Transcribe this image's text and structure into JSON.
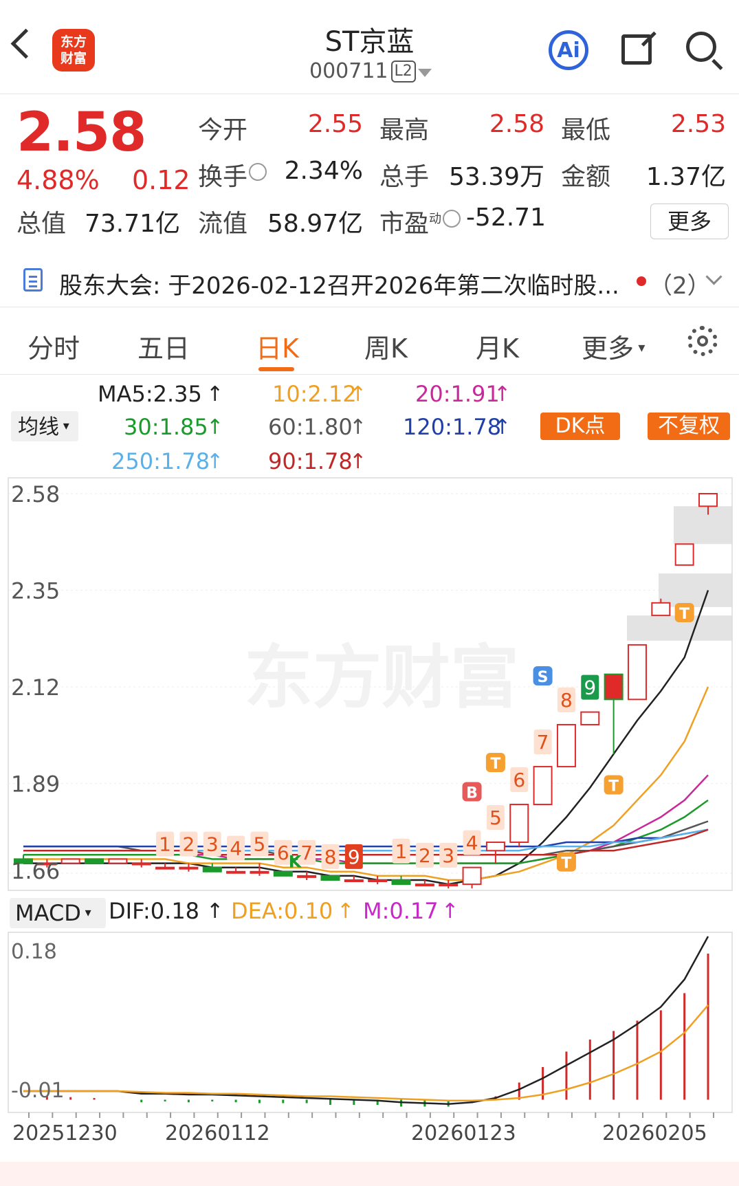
{
  "header": {
    "logo_text_line1": "东方",
    "logo_text_line2": "财富",
    "title": "ST京蓝",
    "code": "000711",
    "level": "L2",
    "ai_label": "Ai"
  },
  "quote": {
    "price": "2.58",
    "change_pct": "4.88%",
    "change": "0.12",
    "fields": [
      {
        "label": "今开",
        "value": "2.55",
        "color": "#e02a2a"
      },
      {
        "label": "最高",
        "value": "2.58",
        "color": "#e02a2a"
      },
      {
        "label": "最低",
        "value": "2.53",
        "color": "#e02a2a"
      },
      {
        "label": "换手",
        "value": "2.34%",
        "color": "#222222"
      },
      {
        "label": "总手",
        "value": "53.39万",
        "color": "#222222"
      },
      {
        "label": "金额",
        "value": "1.37亿",
        "color": "#222222"
      },
      {
        "label": "总值",
        "value": "73.71亿",
        "color": "#222222"
      },
      {
        "label": "流值",
        "value": "58.97亿",
        "color": "#222222"
      },
      {
        "label": "市盈",
        "value": "-52.71",
        "color": "#222222"
      }
    ],
    "pe_sup": "动",
    "more_label": "更多"
  },
  "notice": {
    "text": "股东大会: 于2026-02-12召开2026年第二次临时股...",
    "count": "（2）"
  },
  "tabs": [
    "分时",
    "五日",
    "日K",
    "周K",
    "月K",
    "更多"
  ],
  "active_tab": "日K",
  "indicators": {
    "junxian_label": "均线",
    "ma": [
      {
        "text": "MA5:2.35",
        "color": "#222222"
      },
      {
        "text": "10:2.12",
        "color": "#f0a020"
      },
      {
        "text": "20:1.91",
        "color": "#c8289a"
      },
      {
        "text": "30:1.85",
        "color": "#1a9a2a"
      },
      {
        "text": "60:1.80",
        "color": "#555555"
      },
      {
        "text": "120:1.78",
        "color": "#2040a8"
      },
      {
        "text": "250:1.78",
        "color": "#5ab0e8"
      },
      {
        "text": "90:1.78",
        "color": "#c02828"
      }
    ],
    "dk_label": "DK点",
    "fq_label": "不复权",
    "macd_label": "MACD",
    "macd": [
      {
        "text": "DIF:0.18",
        "color": "#222222"
      },
      {
        "text": "DEA:0.10",
        "color": "#f0a020"
      },
      {
        "text": "M:0.17",
        "color": "#c828c8"
      }
    ]
  },
  "watermark": "东方财富",
  "chart_data": [
    {
      "type": "candlestick",
      "y_ticks": [
        "2.58",
        "2.35",
        "2.12",
        "1.89",
        "1.66"
      ],
      "ylim": [
        1.66,
        2.58
      ],
      "candles": [
        {
          "o": 1.71,
          "h": 1.72,
          "l": 1.7,
          "c": 1.7
        },
        {
          "o": 1.7,
          "h": 1.71,
          "l": 1.69,
          "c": 1.7
        },
        {
          "o": 1.7,
          "h": 1.71,
          "l": 1.7,
          "c": 1.71
        },
        {
          "o": 1.71,
          "h": 1.71,
          "l": 1.7,
          "c": 1.7
        },
        {
          "o": 1.7,
          "h": 1.71,
          "l": 1.7,
          "c": 1.71
        },
        {
          "o": 1.7,
          "h": 1.71,
          "l": 1.69,
          "c": 1.7
        },
        {
          "o": 1.69,
          "h": 1.7,
          "l": 1.69,
          "c": 1.69
        },
        {
          "o": 1.69,
          "h": 1.7,
          "l": 1.68,
          "c": 1.69
        },
        {
          "o": 1.69,
          "h": 1.7,
          "l": 1.68,
          "c": 1.68
        },
        {
          "o": 1.68,
          "h": 1.69,
          "l": 1.68,
          "c": 1.68
        },
        {
          "o": 1.68,
          "h": 1.7,
          "l": 1.67,
          "c": 1.68
        },
        {
          "o": 1.68,
          "h": 1.68,
          "l": 1.67,
          "c": 1.67
        },
        {
          "o": 1.67,
          "h": 1.68,
          "l": 1.66,
          "c": 1.67
        },
        {
          "o": 1.67,
          "h": 1.67,
          "l": 1.66,
          "c": 1.66
        },
        {
          "o": 1.66,
          "h": 1.67,
          "l": 1.66,
          "c": 1.66
        },
        {
          "o": 1.66,
          "h": 1.67,
          "l": 1.65,
          "c": 1.66
        },
        {
          "o": 1.66,
          "h": 1.67,
          "l": 1.65,
          "c": 1.65
        },
        {
          "o": 1.65,
          "h": 1.66,
          "l": 1.65,
          "c": 1.65
        },
        {
          "o": 1.65,
          "h": 1.66,
          "l": 1.64,
          "c": 1.65
        },
        {
          "o": 1.65,
          "h": 1.69,
          "l": 1.64,
          "c": 1.69
        },
        {
          "o": 1.73,
          "h": 1.75,
          "l": 1.7,
          "c": 1.75
        },
        {
          "o": 1.75,
          "h": 1.84,
          "l": 1.74,
          "c": 1.84
        },
        {
          "o": 1.84,
          "h": 1.93,
          "l": 1.84,
          "c": 1.93
        },
        {
          "o": 1.93,
          "h": 2.03,
          "l": 1.93,
          "c": 2.03
        },
        {
          "o": 2.03,
          "h": 2.06,
          "l": 2.03,
          "c": 2.06
        },
        {
          "o": 2.15,
          "h": 2.15,
          "l": 1.96,
          "c": 2.09
        },
        {
          "o": 2.09,
          "h": 2.22,
          "l": 2.09,
          "c": 2.22
        },
        {
          "o": 2.29,
          "h": 2.33,
          "l": 2.29,
          "c": 2.32
        },
        {
          "o": 2.41,
          "h": 2.46,
          "l": 2.41,
          "c": 2.46
        },
        {
          "o": 2.55,
          "h": 2.58,
          "l": 2.53,
          "c": 2.58
        }
      ],
      "ma_lines": [
        {
          "name": "MA5",
          "color": "#222222",
          "values": [
            1.7,
            1.7,
            1.7,
            1.7,
            1.7,
            1.7,
            1.7,
            1.7,
            1.69,
            1.69,
            1.69,
            1.68,
            1.68,
            1.67,
            1.67,
            1.66,
            1.66,
            1.66,
            1.65,
            1.66,
            1.67,
            1.7,
            1.75,
            1.81,
            1.88,
            1.96,
            2.04,
            2.11,
            2.19,
            2.35
          ]
        },
        {
          "name": "10",
          "color": "#f0a020",
          "values": [
            1.71,
            1.71,
            1.71,
            1.71,
            1.71,
            1.71,
            1.71,
            1.7,
            1.7,
            1.7,
            1.7,
            1.69,
            1.69,
            1.68,
            1.68,
            1.67,
            1.67,
            1.67,
            1.66,
            1.66,
            1.67,
            1.68,
            1.7,
            1.72,
            1.75,
            1.79,
            1.85,
            1.91,
            1.99,
            2.12
          ]
        },
        {
          "name": "20",
          "color": "#c8289a",
          "values": [
            1.72,
            1.72,
            1.72,
            1.72,
            1.72,
            1.72,
            1.72,
            1.72,
            1.72,
            1.71,
            1.71,
            1.71,
            1.71,
            1.71,
            1.7,
            1.7,
            1.7,
            1.7,
            1.7,
            1.7,
            1.7,
            1.7,
            1.71,
            1.72,
            1.73,
            1.75,
            1.78,
            1.81,
            1.85,
            1.91
          ]
        },
        {
          "name": "30",
          "color": "#1a9a2a",
          "values": [
            1.72,
            1.72,
            1.72,
            1.72,
            1.72,
            1.72,
            1.72,
            1.72,
            1.71,
            1.71,
            1.71,
            1.71,
            1.71,
            1.7,
            1.7,
            1.7,
            1.7,
            1.7,
            1.7,
            1.7,
            1.7,
            1.7,
            1.71,
            1.72,
            1.73,
            1.74,
            1.76,
            1.78,
            1.81,
            1.85
          ]
        },
        {
          "name": "60",
          "color": "#555555",
          "values": [
            1.74,
            1.74,
            1.74,
            1.74,
            1.74,
            1.73,
            1.73,
            1.73,
            1.73,
            1.73,
            1.73,
            1.72,
            1.72,
            1.72,
            1.72,
            1.72,
            1.72,
            1.72,
            1.72,
            1.72,
            1.72,
            1.72,
            1.72,
            1.73,
            1.73,
            1.74,
            1.75,
            1.76,
            1.78,
            1.8
          ]
        },
        {
          "name": "120",
          "color": "#2040a8",
          "values": [
            1.74,
            1.74,
            1.74,
            1.74,
            1.74,
            1.74,
            1.74,
            1.74,
            1.74,
            1.74,
            1.74,
            1.74,
            1.74,
            1.74,
            1.74,
            1.74,
            1.74,
            1.74,
            1.74,
            1.74,
            1.74,
            1.74,
            1.74,
            1.75,
            1.75,
            1.75,
            1.76,
            1.76,
            1.77,
            1.78
          ]
        },
        {
          "name": "250",
          "color": "#5ab0e8",
          "values": [
            1.73,
            1.73,
            1.73,
            1.73,
            1.73,
            1.73,
            1.73,
            1.73,
            1.73,
            1.73,
            1.73,
            1.73,
            1.73,
            1.73,
            1.73,
            1.73,
            1.73,
            1.73,
            1.73,
            1.73,
            1.73,
            1.73,
            1.74,
            1.74,
            1.74,
            1.75,
            1.75,
            1.76,
            1.77,
            1.78
          ]
        },
        {
          "name": "90",
          "color": "#c02828",
          "values": [
            1.73,
            1.73,
            1.73,
            1.73,
            1.73,
            1.73,
            1.73,
            1.73,
            1.72,
            1.72,
            1.72,
            1.72,
            1.72,
            1.72,
            1.72,
            1.72,
            1.72,
            1.72,
            1.72,
            1.72,
            1.72,
            1.72,
            1.72,
            1.72,
            1.73,
            1.73,
            1.74,
            1.75,
            1.76,
            1.78
          ]
        }
      ],
      "td_counts": [
        {
          "i": 6,
          "t": "1"
        },
        {
          "i": 7,
          "t": "2"
        },
        {
          "i": 8,
          "t": "3"
        },
        {
          "i": 9,
          "t": "4"
        },
        {
          "i": 10,
          "t": "5"
        },
        {
          "i": 11,
          "t": "6"
        },
        {
          "i": 12,
          "t": "7"
        },
        {
          "i": 13,
          "t": "8"
        },
        {
          "i": 14,
          "t": "9"
        },
        {
          "i": 16,
          "t": "1"
        },
        {
          "i": 17,
          "t": "2"
        },
        {
          "i": 18,
          "t": "3"
        },
        {
          "i": 19,
          "t": "4"
        },
        {
          "i": 20,
          "t": "5"
        },
        {
          "i": 21,
          "t": "6"
        },
        {
          "i": 22,
          "t": "7"
        },
        {
          "i": 23,
          "t": "8"
        },
        {
          "i": 24,
          "t": "9"
        }
      ],
      "markers": [
        "B",
        "S",
        "T",
        "T",
        "T",
        "T",
        "K"
      ]
    },
    {
      "type": "bar",
      "title": "MACD",
      "y_ticks": [
        "0.18",
        "-0.01"
      ],
      "ylim": [
        -0.02,
        0.18
      ],
      "x_ticks": [
        "20251230",
        "20260112",
        "20260123",
        "20260205"
      ],
      "dif": [
        0.0,
        0.0,
        0.0,
        0.0,
        0.0,
        -0.003,
        -0.003,
        -0.004,
        -0.004,
        -0.005,
        -0.006,
        -0.007,
        -0.008,
        -0.009,
        -0.01,
        -0.011,
        -0.013,
        -0.014,
        -0.015,
        -0.013,
        -0.008,
        0.002,
        0.015,
        0.03,
        0.045,
        0.06,
        0.078,
        0.098,
        0.13,
        0.18
      ],
      "dea": [
        0.0,
        0.0,
        0.0,
        0.0,
        0.0,
        -0.001,
        -0.002,
        -0.002,
        -0.003,
        -0.003,
        -0.004,
        -0.005,
        -0.006,
        -0.006,
        -0.007,
        -0.008,
        -0.009,
        -0.01,
        -0.011,
        -0.011,
        -0.01,
        -0.008,
        -0.004,
        0.002,
        0.01,
        0.02,
        0.032,
        0.046,
        0.068,
        0.1
      ],
      "m": [
        0.0,
        0.004,
        0.003,
        0.002,
        0.0,
        -0.003,
        -0.002,
        -0.003,
        -0.002,
        -0.003,
        -0.004,
        -0.004,
        -0.004,
        -0.006,
        -0.006,
        -0.006,
        -0.008,
        -0.008,
        -0.008,
        -0.004,
        0.004,
        0.02,
        0.038,
        0.056,
        0.07,
        0.08,
        0.092,
        0.104,
        0.124,
        0.17
      ]
    }
  ]
}
